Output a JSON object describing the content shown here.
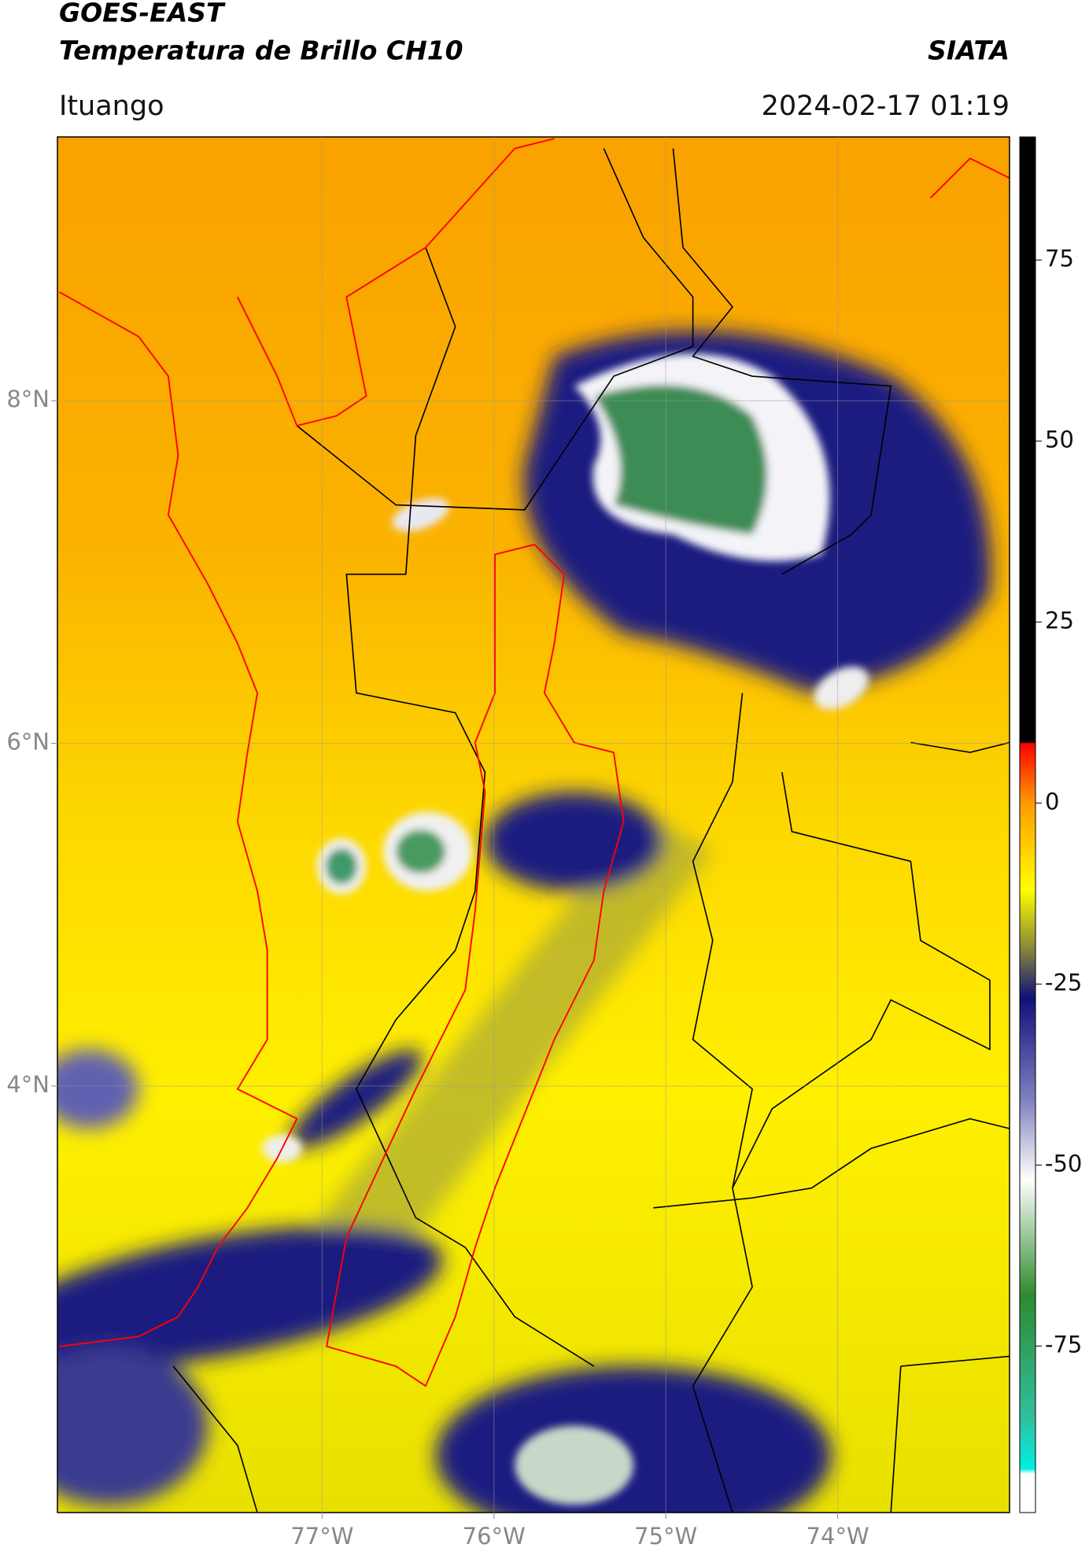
{
  "header": {
    "title": "GOES-EAST",
    "subtitle": "Temperatura de Brillo CH10",
    "org": "SIATA",
    "location": "Ituango",
    "datetime": "2024-02-17 01:19"
  },
  "map": {
    "xlim": [
      -78.54,
      -73.0
    ],
    "ylim": [
      1.51,
      9.54
    ],
    "xticks": [
      {
        "value": -77,
        "label": "77°W"
      },
      {
        "value": -76,
        "label": "76°W"
      },
      {
        "value": -75,
        "label": "75°W"
      },
      {
        "value": -74,
        "label": "74°W"
      }
    ],
    "yticks": [
      {
        "value": 8,
        "label": "8°N"
      },
      {
        "value": 6,
        "label": "6°N"
      },
      {
        "value": 4,
        "label": "4°N"
      }
    ],
    "grid": true
  },
  "colorbar": {
    "lim": [
      -98,
      92
    ],
    "ticks": [
      75,
      50,
      25,
      0,
      -25,
      -50,
      -75
    ]
  }
}
